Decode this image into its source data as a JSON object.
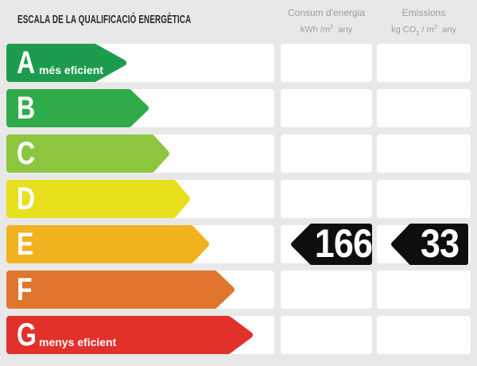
{
  "header": {
    "title": "ESCALA DE LA QUALIFICACIÓ ENERGÈTICA",
    "columns": [
      {
        "label": "Consum d'energia",
        "unit": {
          "pre": "kWh /m",
          "sup": "2",
          "post": "  any"
        }
      },
      {
        "label": "Emissions",
        "unit": {
          "pre": "kg CO",
          "sub": "2",
          "mid": " / m",
          "sup": "2",
          "post": "  any"
        }
      }
    ]
  },
  "scale": {
    "rating": "E",
    "rows": [
      {
        "letter": "A",
        "note": "més eficient",
        "color": "#1E9C4D",
        "arrow_width": 151,
        "tip": 40
      },
      {
        "letter": "B",
        "note": "",
        "color": "#2FAC49",
        "arrow_width": 179,
        "tip": 25
      },
      {
        "letter": "C",
        "note": "",
        "color": "#8CC63F",
        "arrow_width": 205,
        "tip": 22
      },
      {
        "letter": "D",
        "note": "",
        "color": "#E8E01C",
        "arrow_width": 231,
        "tip": 21
      },
      {
        "letter": "E",
        "note": "",
        "color": "#F0B21E",
        "arrow_width": 255,
        "tip": 23
      },
      {
        "letter": "F",
        "note": "",
        "color": "#E0752D",
        "arrow_width": 287,
        "tip": 25
      },
      {
        "letter": "G",
        "note": "menys eficient",
        "color": "#E2302B",
        "arrow_width": 310,
        "tip": 31
      }
    ]
  },
  "values": {
    "consum": "166",
    "emissions": "33",
    "badge_color": "#0e0e0e",
    "text_color": "#ffffff"
  },
  "colors": {
    "background": "#E8E8E8",
    "row_track": "#FFFFFF",
    "title_text": "#282828",
    "column_header_text": "#9C9C9C"
  },
  "chart_data": {
    "type": "bar",
    "title": "ESCALA DE LA QUALIFICACIÓ ENERGÈTICA",
    "categories": [
      "A",
      "B",
      "C",
      "D",
      "E",
      "F",
      "G"
    ],
    "values": [
      159,
      187,
      213,
      239,
      263,
      295,
      318
    ],
    "value_note": "arrow lengths in px (qualitative scale, A shortest to G longest)",
    "bar_colors": [
      "#1E9C4D",
      "#2FAC49",
      "#8CC63F",
      "#E8E01C",
      "#F0B21E",
      "#E0752D",
      "#E2302B"
    ],
    "annotations": [
      {
        "category": "E",
        "consum_kwh_m2_any": 166,
        "emissions_kg_co2_m2_any": 33
      }
    ],
    "legend_position": "none",
    "grid": false,
    "series": [
      {
        "name": "Consum d'energia (kWh/m2 any)",
        "values": [
          null,
          null,
          null,
          null,
          166,
          null,
          null
        ]
      },
      {
        "name": "Emissions (kg CO2/m2 any)",
        "values": [
          null,
          null,
          null,
          null,
          33,
          null,
          null
        ]
      }
    ]
  }
}
